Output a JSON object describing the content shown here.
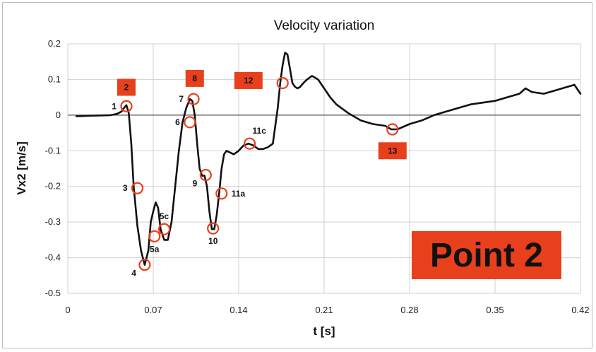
{
  "chart_data": {
    "type": "line",
    "title": "Velocity variation",
    "xlabel": "t [s]",
    "ylabel": "Vx2 [m/s]",
    "xlim": [
      0,
      0.42
    ],
    "ylim": [
      -0.5,
      0.2
    ],
    "xticks": [
      "0",
      "0.07",
      "0.14",
      "0.21",
      "0.28",
      "0.35",
      "0.42"
    ],
    "xtick_values": [
      0,
      0.07,
      0.14,
      0.21,
      0.28,
      0.35,
      0.42
    ],
    "yticks": [
      "0.2",
      "0.1",
      "0",
      "-0.1",
      "-0.2",
      "-0.3",
      "-0.4",
      "-0.5"
    ],
    "ytick_values": [
      0.2,
      0.1,
      0,
      -0.1,
      -0.2,
      -0.3,
      -0.4,
      -0.5
    ],
    "grid": true,
    "series": [
      {
        "x": [
          0.007,
          0.015,
          0.025,
          0.035,
          0.04,
          0.044,
          0.046,
          0.048,
          0.05,
          0.052,
          0.054,
          0.057,
          0.06,
          0.063,
          0.066,
          0.068,
          0.07,
          0.072,
          0.074,
          0.076,
          0.079,
          0.082,
          0.085,
          0.088,
          0.091,
          0.094,
          0.097,
          0.1,
          0.102,
          0.104,
          0.106,
          0.108,
          0.11,
          0.112,
          0.114,
          0.116,
          0.118,
          0.12,
          0.122,
          0.124,
          0.126,
          0.128,
          0.13,
          0.133,
          0.136,
          0.14,
          0.144,
          0.148,
          0.152,
          0.156,
          0.16,
          0.164,
          0.168,
          0.172,
          0.174,
          0.176,
          0.178,
          0.18,
          0.182,
          0.184,
          0.186,
          0.188,
          0.19,
          0.193,
          0.196,
          0.2,
          0.205,
          0.21,
          0.215,
          0.22,
          0.23,
          0.24,
          0.25,
          0.26,
          0.265,
          0.27,
          0.28,
          0.29,
          0.3,
          0.31,
          0.32,
          0.33,
          0.34,
          0.35,
          0.36,
          0.37,
          0.375,
          0.38,
          0.39,
          0.4,
          0.41,
          0.415,
          0.42
        ],
        "y": [
          -0.003,
          -0.002,
          -0.001,
          0.0,
          0.003,
          0.01,
          0.02,
          0.028,
          0.005,
          -0.08,
          -0.2,
          -0.31,
          -0.38,
          -0.42,
          -0.38,
          -0.3,
          -0.27,
          -0.245,
          -0.26,
          -0.32,
          -0.35,
          -0.35,
          -0.3,
          -0.2,
          -0.1,
          -0.02,
          0.02,
          0.045,
          0.04,
          0.0,
          -0.08,
          -0.15,
          -0.17,
          -0.17,
          -0.2,
          -0.27,
          -0.32,
          -0.32,
          -0.28,
          -0.22,
          -0.15,
          -0.11,
          -0.1,
          -0.105,
          -0.11,
          -0.1,
          -0.085,
          -0.08,
          -0.085,
          -0.095,
          -0.095,
          -0.09,
          -0.08,
          0.02,
          0.09,
          0.14,
          0.175,
          0.17,
          0.13,
          0.09,
          0.08,
          0.075,
          0.078,
          0.09,
          0.1,
          0.11,
          0.1,
          0.075,
          0.05,
          0.03,
          0.005,
          -0.015,
          -0.025,
          -0.03,
          -0.04,
          -0.04,
          -0.025,
          -0.015,
          0.0,
          0.01,
          0.02,
          0.03,
          0.035,
          0.04,
          0.05,
          0.06,
          0.075,
          0.065,
          0.06,
          0.07,
          0.08,
          0.085,
          0.06
        ]
      }
    ],
    "markers": [
      {
        "x": 0.048,
        "y": 0.025,
        "label": "1",
        "pos": "left"
      },
      {
        "x": 0.057,
        "y": -0.205,
        "label": "3",
        "pos": "left"
      },
      {
        "x": 0.063,
        "y": -0.42,
        "label": "4",
        "pos": "below-left"
      },
      {
        "x": 0.071,
        "y": -0.34,
        "label": "5a",
        "pos": "below"
      },
      {
        "x": 0.079,
        "y": -0.32,
        "label": "5c",
        "pos": "above"
      },
      {
        "x": 0.1,
        "y": -0.02,
        "label": "6",
        "pos": "left"
      },
      {
        "x": 0.103,
        "y": 0.045,
        "label": "7",
        "pos": "left"
      },
      {
        "x": 0.113,
        "y": -0.168,
        "label": "9",
        "pos": "below-left"
      },
      {
        "x": 0.119,
        "y": -0.318,
        "label": "10",
        "pos": "below"
      },
      {
        "x": 0.126,
        "y": -0.22,
        "label": "11a",
        "pos": "right"
      },
      {
        "x": 0.149,
        "y": -0.08,
        "label": "11c",
        "pos": "above-right"
      },
      {
        "x": 0.176,
        "y": 0.09,
        "label": "",
        "pos": "none"
      },
      {
        "x": 0.266,
        "y": -0.04,
        "label": "",
        "pos": "none"
      }
    ],
    "boxed_labels": [
      {
        "label": "2",
        "x": 0.048,
        "y": 0.078
      },
      {
        "label": "8",
        "x": 0.104,
        "y": 0.103
      },
      {
        "label": "12",
        "x": 0.148,
        "y": 0.097
      },
      {
        "label": "13",
        "x": 0.266,
        "y": -0.1
      }
    ],
    "badge": "Point 2",
    "line_color": "#111111",
    "marker_color": "#e8401c",
    "box_color": "#e8401c"
  }
}
